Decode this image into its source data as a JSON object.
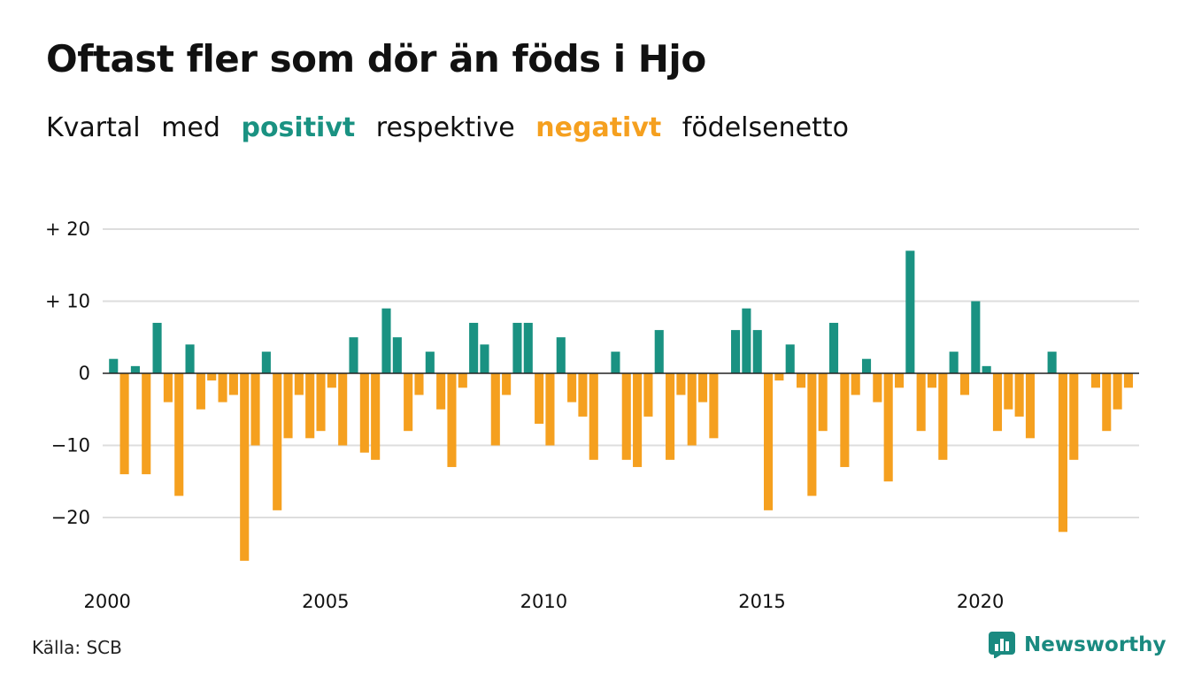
{
  "title": "Oftast fler som dör än föds i Hjo",
  "subtitle": {
    "part1": "Kvartal",
    "part2": "med",
    "positive_word": "positivt",
    "part3": "respektive",
    "negative_word": "negativt",
    "part4": "födelsenetto"
  },
  "source": "Källa: SCB",
  "brand": "Newsworthy",
  "colors": {
    "positive": "#1a9282",
    "negative": "#f5a01f",
    "grid": "#dddddd",
    "zero": "#222222"
  },
  "chart_data": {
    "type": "bar",
    "title": "Oftast fler som dör än föds i Hjo",
    "subtitle": "Kvartal med positivt respektive negativt födelsenetto",
    "x_start": "2000-Q1",
    "x_ticks": [
      "2000",
      "2005",
      "2010",
      "2015",
      "2020"
    ],
    "y_ticks": [
      "+ 20",
      "+ 10",
      "0",
      "−10",
      "−20"
    ],
    "y_tick_values": [
      20,
      10,
      0,
      -10,
      -20
    ],
    "ylim": [
      -27,
      20
    ],
    "grid": true,
    "values": [
      2,
      -14,
      1,
      -14,
      7,
      -4,
      -17,
      4,
      -5,
      -1,
      -4,
      -3,
      -26,
      -10,
      3,
      -19,
      -9,
      -3,
      -9,
      -8,
      -2,
      -10,
      5,
      -11,
      -12,
      9,
      5,
      -8,
      -3,
      3,
      -5,
      -13,
      -2,
      7,
      4,
      -10,
      -3,
      7,
      7,
      -7,
      -10,
      5,
      -4,
      -6,
      -12,
      0,
      3,
      -12,
      -13,
      -6,
      6,
      -12,
      -3,
      -10,
      -4,
      -9,
      0,
      6,
      9,
      6,
      -19,
      -1,
      4,
      -2,
      -17,
      -8,
      7,
      -13,
      -3,
      2,
      -4,
      -15,
      -2,
      17,
      -8,
      -2,
      -12,
      3,
      -3,
      10,
      1,
      -8,
      -5,
      -6,
      -9,
      0,
      3,
      -22,
      -12,
      0,
      -2,
      -8,
      -5,
      -2
    ]
  }
}
